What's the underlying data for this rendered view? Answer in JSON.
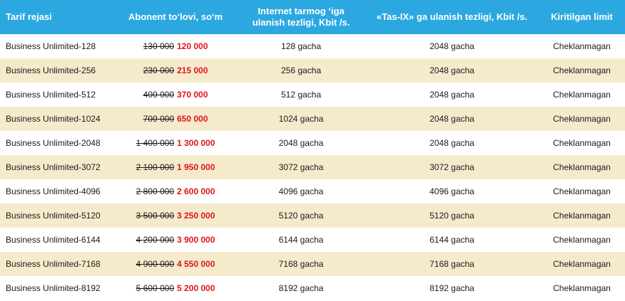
{
  "headers": [
    "Tarif rejasi",
    "Abonent to‘lovi, so‘m",
    "Internet tarmog ‘iga ulanish tezligi, Kbit /s.",
    "«Tas-IX» ga ulanish tezligi, Kbit /s.",
    "Kiritilgan limit"
  ],
  "rows": [
    {
      "name": "Business Unlimited-128",
      "old_price": "130 000",
      "new_price": "120 000",
      "internet": "128 gacha",
      "tasix": "2048 gacha",
      "limit": "Cheklanmagan"
    },
    {
      "name": "Business Unlimited-256",
      "old_price": "230 000",
      "new_price": "215 000",
      "internet": "256 gacha",
      "tasix": "2048 gacha",
      "limit": "Cheklanmagan"
    },
    {
      "name": "Business Unlimited-512",
      "old_price": "400 000",
      "new_price": "370 000",
      "internet": "512 gacha",
      "tasix": "2048 gacha",
      "limit": "Cheklanmagan"
    },
    {
      "name": "Business Unlimited-1024",
      "old_price": "700 000",
      "new_price": "650 000",
      "internet": "1024 gacha",
      "tasix": "2048 gacha",
      "limit": "Cheklanmagan"
    },
    {
      "name": "Business Unlimited-2048",
      "old_price": "1 400 000",
      "new_price": "1 300 000",
      "internet": "2048 gacha",
      "tasix": "2048 gacha",
      "limit": "Cheklanmagan"
    },
    {
      "name": "Business Unlimited-3072",
      "old_price": "2 100 000",
      "new_price": "1 950 000",
      "internet": "3072 gacha",
      "tasix": "3072 gacha",
      "limit": "Cheklanmagan"
    },
    {
      "name": "Business Unlimited-4096",
      "old_price": "2 800 000",
      "new_price": "2 600 000",
      "internet": "4096 gacha",
      "tasix": "4096 gacha",
      "limit": "Cheklanmagan"
    },
    {
      "name": "Business Unlimited-5120",
      "old_price": "3 500 000",
      "new_price": "3 250 000",
      "internet": "5120 gacha",
      "tasix": "5120 gacha",
      "limit": "Cheklanmagan"
    },
    {
      "name": "Business Unlimited-6144",
      "old_price": "4 200 000",
      "new_price": "3 900 000",
      "internet": "6144 gacha",
      "tasix": "6144 gacha",
      "limit": "Cheklanmagan"
    },
    {
      "name": "Business Unlimited-7168",
      "old_price": "4 900 000",
      "new_price": "4 550 000",
      "internet": "7168 gacha",
      "tasix": "7168 gacha",
      "limit": "Cheklanmagan"
    },
    {
      "name": "Business Unlimited-8192",
      "old_price": "5 600 000",
      "new_price": "5 200 000",
      "internet": "8192 gacha",
      "tasix": "8192 gacha",
      "limit": "Cheklanmagan"
    }
  ],
  "colors": {
    "header_bg": "#2ba8e0",
    "stripe_bg": "#f5ebcc",
    "new_price": "#e0141b"
  }
}
